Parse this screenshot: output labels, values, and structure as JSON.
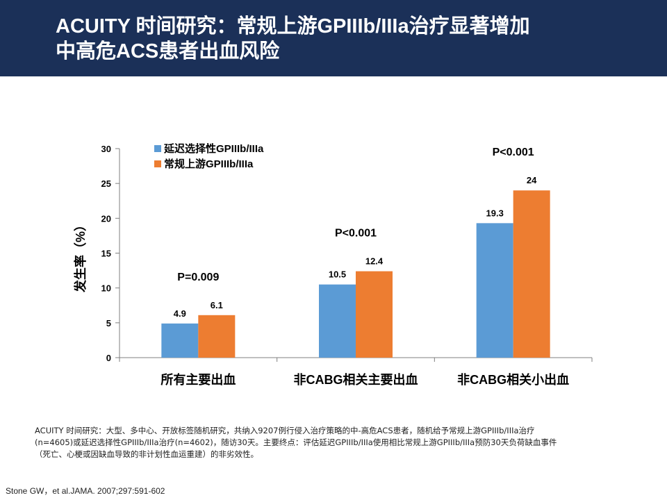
{
  "slide": {
    "title_lines": [
      "ACUITY 时间研究：常规上游GPIIIb/IIIa治疗显著增加",
      "中高危ACS患者出血风险"
    ],
    "note_lines": [
      "ACUITY 时间研究：大型、多中心、开放标签随机研究，共纳入9207例行侵入治疗策略的中-高危ACS患者，随机给予常规上游GPIIIb/IIIa治疗",
      "(n=4605)或延迟选择性GPIIIb/IIIa治疗(n=4602)，随访30天。主要终点：评估延迟GPIIIb/IIIa使用相比常规上游GPIIIb/IIIa预防30天负荷缺血事件",
      "（死亡、心梗或因缺血导致的非计划性血运重建）的非劣效性。"
    ],
    "reference": "Stone GW，et al.JAMA. 2007;297:591-602"
  },
  "chart_data": {
    "type": "bar",
    "categories": [
      "所有主要出血",
      "非CABG相关主要出血",
      "非CABG相关小出血"
    ],
    "series": [
      {
        "name": "延迟选择性GPIIIb/IIIa",
        "values": [
          4.9,
          10.5,
          19.3
        ],
        "color": "#5b9bd5"
      },
      {
        "name": "常规上游GPIIIb/IIIa",
        "values": [
          6.1,
          12.4,
          24
        ],
        "color": "#ed7d31"
      }
    ],
    "value_labels": [
      [
        "4.9",
        "10.5",
        "19.3"
      ],
      [
        "6.1",
        "12.4",
        "24"
      ]
    ],
    "p_values": [
      "P=0.009",
      "P<0.001",
      "P<0.001"
    ],
    "ylabel": "发生率（%）",
    "xlabel": "",
    "ylim": [
      0,
      30
    ],
    "yticks": [
      0,
      5,
      10,
      15,
      20,
      25,
      30
    ],
    "legend_position": "top-left",
    "grid": false
  }
}
